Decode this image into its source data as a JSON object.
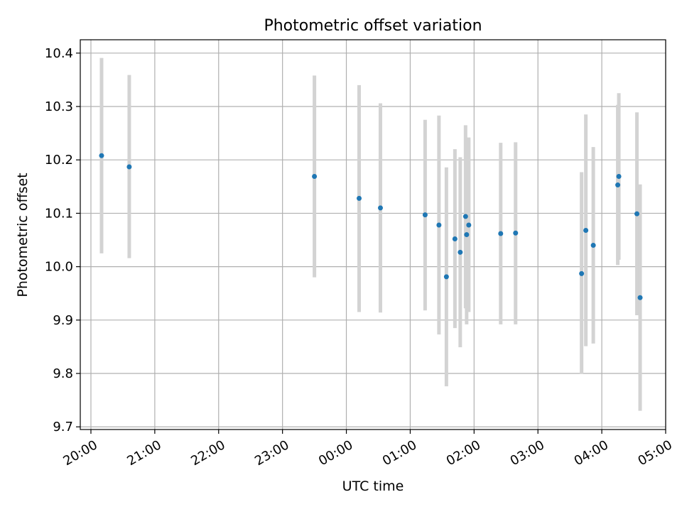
{
  "chart_data": {
    "type": "scatter",
    "title": "Photometric offset variation",
    "xlabel": "UTC time",
    "ylabel": "Photometric offset",
    "xlim": [
      "2000-01-01T19:50",
      "2000-01-02T05:00"
    ],
    "ylim": [
      9.695,
      10.425
    ],
    "x_ticks": [
      {
        "t": "2000-01-01T20:00",
        "label": "20:00"
      },
      {
        "t": "2000-01-01T21:00",
        "label": "21:00"
      },
      {
        "t": "2000-01-01T22:00",
        "label": "22:00"
      },
      {
        "t": "2000-01-01T23:00",
        "label": "23:00"
      },
      {
        "t": "2000-01-02T00:00",
        "label": "00:00"
      },
      {
        "t": "2000-01-02T01:00",
        "label": "01:00"
      },
      {
        "t": "2000-01-02T02:00",
        "label": "02:00"
      },
      {
        "t": "2000-01-02T03:00",
        "label": "03:00"
      },
      {
        "t": "2000-01-02T04:00",
        "label": "04:00"
      },
      {
        "t": "2000-01-02T05:00",
        "label": "05:00"
      }
    ],
    "y_ticks": [
      {
        "v": 9.7,
        "label": "9.7"
      },
      {
        "v": 9.8,
        "label": "9.8"
      },
      {
        "v": 9.9,
        "label": "9.9"
      },
      {
        "v": 10.0,
        "label": "10.0"
      },
      {
        "v": 10.1,
        "label": "10.1"
      },
      {
        "v": 10.2,
        "label": "10.2"
      },
      {
        "v": 10.3,
        "label": "10.3"
      },
      {
        "v": 10.4,
        "label": "10.4"
      }
    ],
    "grid": true,
    "marker_color": "#1f77b4",
    "errorbar_color": "#d3d3d3",
    "points": [
      {
        "x": "2000-01-01T20:10",
        "y": 10.208,
        "lo": 10.025,
        "hi": 10.391
      },
      {
        "x": "2000-01-01T20:36",
        "y": 10.187,
        "lo": 10.016,
        "hi": 10.359
      },
      {
        "x": "2000-01-01T23:30",
        "y": 10.169,
        "lo": 9.98,
        "hi": 10.358
      },
      {
        "x": "2000-01-02T00:12",
        "y": 10.128,
        "lo": 9.915,
        "hi": 10.34
      },
      {
        "x": "2000-01-02T00:32",
        "y": 10.11,
        "lo": 9.914,
        "hi": 10.306
      },
      {
        "x": "2000-01-02T01:14",
        "y": 10.097,
        "lo": 9.918,
        "hi": 10.275
      },
      {
        "x": "2000-01-02T01:27",
        "y": 10.078,
        "lo": 9.873,
        "hi": 10.283
      },
      {
        "x": "2000-01-02T01:34",
        "y": 9.981,
        "lo": 9.776,
        "hi": 10.186
      },
      {
        "x": "2000-01-02T01:42",
        "y": 10.052,
        "lo": 9.885,
        "hi": 10.22
      },
      {
        "x": "2000-01-02T01:47",
        "y": 10.027,
        "lo": 9.849,
        "hi": 10.205
      },
      {
        "x": "2000-01-02T01:52",
        "y": 10.094,
        "lo": 9.922,
        "hi": 10.265
      },
      {
        "x": "2000-01-02T01:53",
        "y": 10.06,
        "lo": 9.892,
        "hi": 10.228
      },
      {
        "x": "2000-01-02T01:55",
        "y": 10.078,
        "lo": 9.915,
        "hi": 10.242
      },
      {
        "x": "2000-01-02T02:25",
        "y": 10.062,
        "lo": 9.892,
        "hi": 10.232
      },
      {
        "x": "2000-01-02T02:39",
        "y": 10.063,
        "lo": 9.892,
        "hi": 10.233
      },
      {
        "x": "2000-01-02T03:41",
        "y": 9.987,
        "lo": 9.799,
        "hi": 10.177
      },
      {
        "x": "2000-01-02T03:45",
        "y": 10.068,
        "lo": 9.851,
        "hi": 10.285
      },
      {
        "x": "2000-01-02T03:52",
        "y": 10.04,
        "lo": 9.856,
        "hi": 10.224
      },
      {
        "x": "2000-01-02T04:15",
        "y": 10.153,
        "lo": 10.003,
        "hi": 10.303
      },
      {
        "x": "2000-01-02T04:16",
        "y": 10.169,
        "lo": 10.013,
        "hi": 10.325
      },
      {
        "x": "2000-01-02T04:33",
        "y": 10.099,
        "lo": 9.909,
        "hi": 10.289
      },
      {
        "x": "2000-01-02T04:36",
        "y": 9.942,
        "lo": 9.73,
        "hi": 10.154
      }
    ]
  }
}
